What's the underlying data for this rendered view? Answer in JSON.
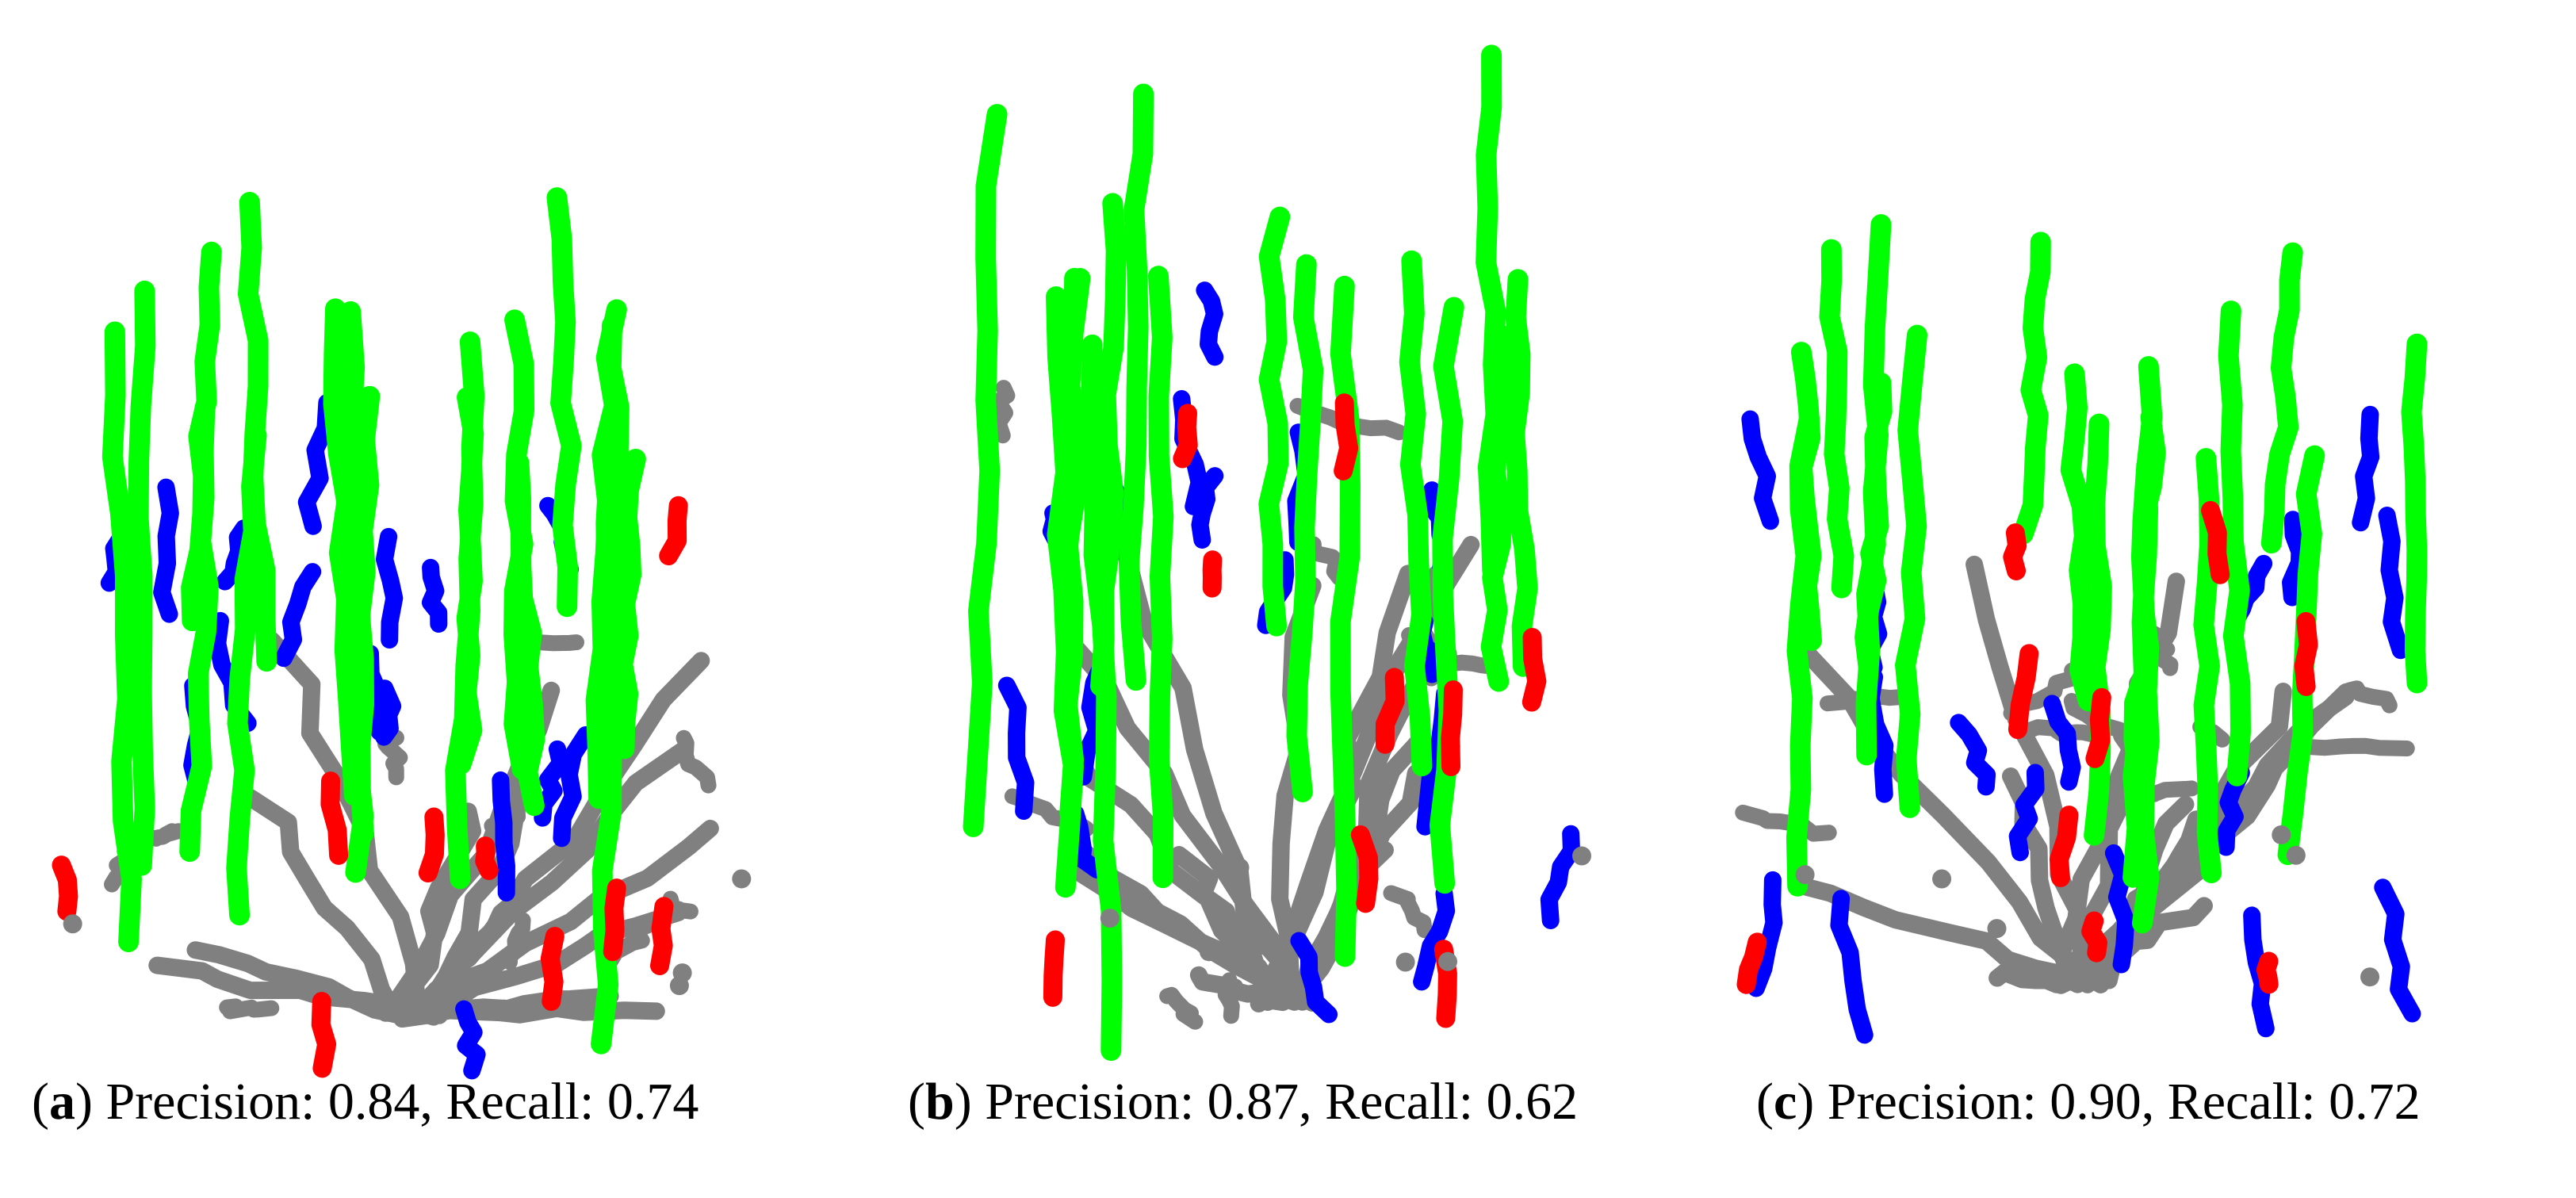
{
  "colors": {
    "green": "#00ff00",
    "blue": "#0000ff",
    "red": "#ff0000",
    "gray": "#808080",
    "background": "#ffffff"
  },
  "panels": [
    {
      "letter": "a",
      "text": " Precision: 0.84, Recall: 0.74"
    },
    {
      "letter": "b",
      "text": " Precision: 0.87, Recall: 0.62"
    },
    {
      "letter": "c",
      "text": " Precision: 0.90, Recall: 0.72"
    }
  ]
}
